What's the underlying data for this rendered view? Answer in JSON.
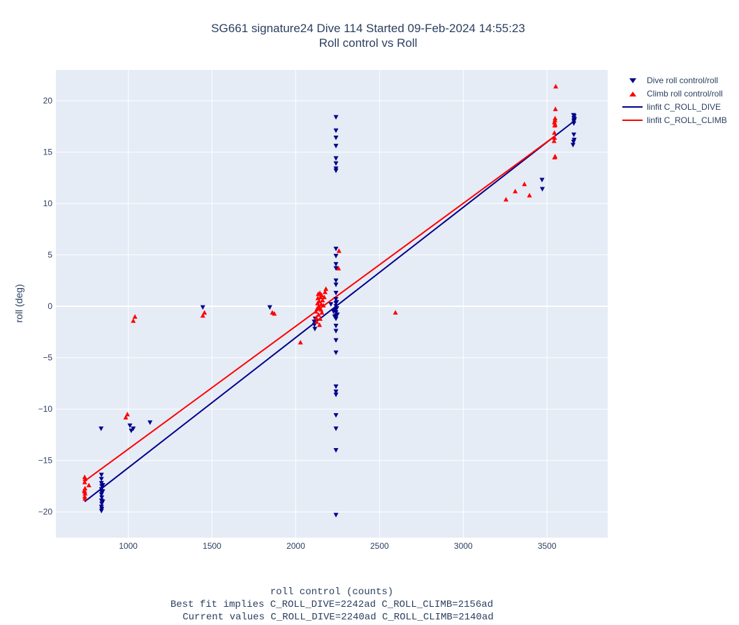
{
  "chart_data": {
    "type": "scatter",
    "title": [
      "SG661 signature24 Dive 114 Started 09-Feb-2024 14:55:23",
      "Roll control vs Roll"
    ],
    "xlabel": "roll control (counts)",
    "xlabel_notes": [
      "Best fit implies C_ROLL_DIVE=2242ad C_ROLL_CLIMB=2156ad",
      "Current values C_ROLL_DIVE=2240ad C_ROLL_CLIMB=2140ad"
    ],
    "ylabel": "roll (deg)",
    "xlim": [
      568,
      3862
    ],
    "ylim": [
      -22.5,
      23.0
    ],
    "xticks": [
      1000,
      1500,
      2000,
      2500,
      3000,
      3500
    ],
    "xtick_labels": [
      "1000",
      "1500",
      "2000",
      "2500",
      "3000",
      "3500"
    ],
    "yticks": [
      -20,
      -15,
      -10,
      -5,
      0,
      5,
      10,
      15,
      20
    ],
    "ytick_labels": [
      "−20",
      "−15",
      "−10",
      "−5",
      "0",
      "5",
      "10",
      "15",
      "20"
    ],
    "grid": true,
    "legend_position": "top-right, outside plot",
    "colors": {
      "plot_bg": "#e5ecf6",
      "grid": "#ffffff",
      "dive": "#00008b",
      "climb": "#ff0000",
      "text": "#2a3f5f"
    },
    "series": [
      {
        "name": "Dive roll control/roll",
        "marker": "triangle-down",
        "color": "#00008b",
        "points": [
          [
            840,
            -16.4
          ],
          [
            840,
            -16.8
          ],
          [
            840,
            -17.2
          ],
          [
            842,
            -17.5
          ],
          [
            840,
            -17.8
          ],
          [
            842,
            -18.1
          ],
          [
            840,
            -18.3
          ],
          [
            842,
            -18.6
          ],
          [
            840,
            -18.9
          ],
          [
            842,
            -19.2
          ],
          [
            840,
            -19.5
          ],
          [
            842,
            -19.7
          ],
          [
            840,
            -19.9
          ],
          [
            848,
            -18.0
          ],
          [
            848,
            -17.4
          ],
          [
            848,
            -19.0
          ],
          [
            838,
            -11.9
          ],
          [
            1010,
            -11.6
          ],
          [
            1018,
            -12.1
          ],
          [
            1030,
            -11.9
          ],
          [
            1130,
            -11.3
          ],
          [
            1445,
            -0.1
          ],
          [
            1845,
            -0.1
          ],
          [
            2110,
            -1.5
          ],
          [
            2112,
            -1.8
          ],
          [
            2114,
            -2.2
          ],
          [
            2116,
            -1.2
          ],
          [
            2240,
            18.4
          ],
          [
            2240,
            17.1
          ],
          [
            2240,
            16.4
          ],
          [
            2240,
            15.6
          ],
          [
            2240,
            14.4
          ],
          [
            2240,
            13.9
          ],
          [
            2240,
            13.4
          ],
          [
            2240,
            13.2
          ],
          [
            2240,
            5.6
          ],
          [
            2240,
            4.9
          ],
          [
            2240,
            4.1
          ],
          [
            2240,
            3.7
          ],
          [
            2240,
            2.5
          ],
          [
            2240,
            2.1
          ],
          [
            2240,
            1.3
          ],
          [
            2240,
            0.7
          ],
          [
            2240,
            0.3
          ],
          [
            2240,
            0.0
          ],
          [
            2240,
            -0.3
          ],
          [
            2240,
            -0.6
          ],
          [
            2240,
            -0.9
          ],
          [
            2240,
            -1.2
          ],
          [
            2240,
            -1.9
          ],
          [
            2240,
            -2.4
          ],
          [
            2240,
            -3.3
          ],
          [
            2240,
            -4.5
          ],
          [
            2240,
            -7.8
          ],
          [
            2240,
            -8.3
          ],
          [
            2240,
            -8.6
          ],
          [
            2240,
            -10.6
          ],
          [
            2240,
            -11.9
          ],
          [
            2240,
            -14.0
          ],
          [
            2240,
            -20.3
          ],
          [
            2235,
            -0.4
          ],
          [
            2245,
            -0.2
          ],
          [
            2248,
            -0.8
          ],
          [
            2232,
            -1.0
          ],
          [
            2244,
            0.4
          ],
          [
            2210,
            0.2
          ],
          [
            2225,
            -0.5
          ],
          [
            3470,
            12.3
          ],
          [
            3472,
            11.4
          ],
          [
            3655,
            15.7
          ],
          [
            3658,
            16.0
          ],
          [
            3660,
            16.7
          ],
          [
            3662,
            16.2
          ],
          [
            3660,
            17.8
          ],
          [
            3662,
            18.1
          ],
          [
            3660,
            18.3
          ],
          [
            3662,
            18.5
          ],
          [
            3658,
            18.6
          ],
          [
            3664,
            18.2
          ],
          [
            3660,
            18.0
          ]
        ]
      },
      {
        "name": "Climb roll control/roll",
        "marker": "triangle-up",
        "color": "#ff0000",
        "points": [
          [
            740,
            -16.6
          ],
          [
            742,
            -16.8
          ],
          [
            740,
            -17.1
          ],
          [
            742,
            -17.7
          ],
          [
            740,
            -18.0
          ],
          [
            742,
            -18.2
          ],
          [
            740,
            -18.5
          ],
          [
            742,
            -18.7
          ],
          [
            738,
            -17.9
          ],
          [
            765,
            -17.4
          ],
          [
            985,
            -10.8
          ],
          [
            995,
            -10.5
          ],
          [
            1030,
            -1.4
          ],
          [
            1040,
            -1.0
          ],
          [
            1445,
            -0.9
          ],
          [
            1455,
            -0.6
          ],
          [
            1860,
            -0.6
          ],
          [
            1872,
            -0.7
          ],
          [
            2028,
            -3.5
          ],
          [
            2120,
            -0.5
          ],
          [
            2122,
            -1.1
          ],
          [
            2125,
            -1.5
          ],
          [
            2128,
            -0.2
          ],
          [
            2130,
            0.3
          ],
          [
            2132,
            0.8
          ],
          [
            2134,
            1.2
          ],
          [
            2136,
            -0.8
          ],
          [
            2138,
            0.0
          ],
          [
            2140,
            0.5
          ],
          [
            2142,
            -1.8
          ],
          [
            2144,
            1.3
          ],
          [
            2146,
            -1.2
          ],
          [
            2148,
            0.9
          ],
          [
            2150,
            -0.3
          ],
          [
            2152,
            0.2
          ],
          [
            2154,
            1.1
          ],
          [
            2156,
            -0.6
          ],
          [
            2160,
            0.6
          ],
          [
            2165,
            0.1
          ],
          [
            2170,
            0.9
          ],
          [
            2175,
            1.4
          ],
          [
            2180,
            1.7
          ],
          [
            2255,
            3.7
          ],
          [
            2258,
            5.4
          ],
          [
            2595,
            -0.6
          ],
          [
            3255,
            10.4
          ],
          [
            3310,
            11.2
          ],
          [
            3365,
            11.9
          ],
          [
            3395,
            10.8
          ],
          [
            3545,
            14.5
          ],
          [
            3548,
            14.6
          ],
          [
            3542,
            16.1
          ],
          [
            3545,
            16.4
          ],
          [
            3544,
            16.9
          ],
          [
            3546,
            17.6
          ],
          [
            3544,
            17.9
          ],
          [
            3547,
            18.1
          ],
          [
            3548,
            18.3
          ],
          [
            3550,
            19.2
          ],
          [
            3552,
            21.4
          ],
          [
            3548,
            17.7
          ]
        ]
      },
      {
        "name": "linfit C_ROLL_DIVE",
        "type": "line",
        "color": "#00008b",
        "points": [
          [
            740,
            -19.0
          ],
          [
            3660,
            18.0
          ]
        ]
      },
      {
        "name": "linfit C_ROLL_CLIMB",
        "type": "line",
        "color": "#ff0000",
        "points": [
          [
            740,
            -17.0
          ],
          [
            3550,
            16.6
          ]
        ]
      }
    ]
  }
}
